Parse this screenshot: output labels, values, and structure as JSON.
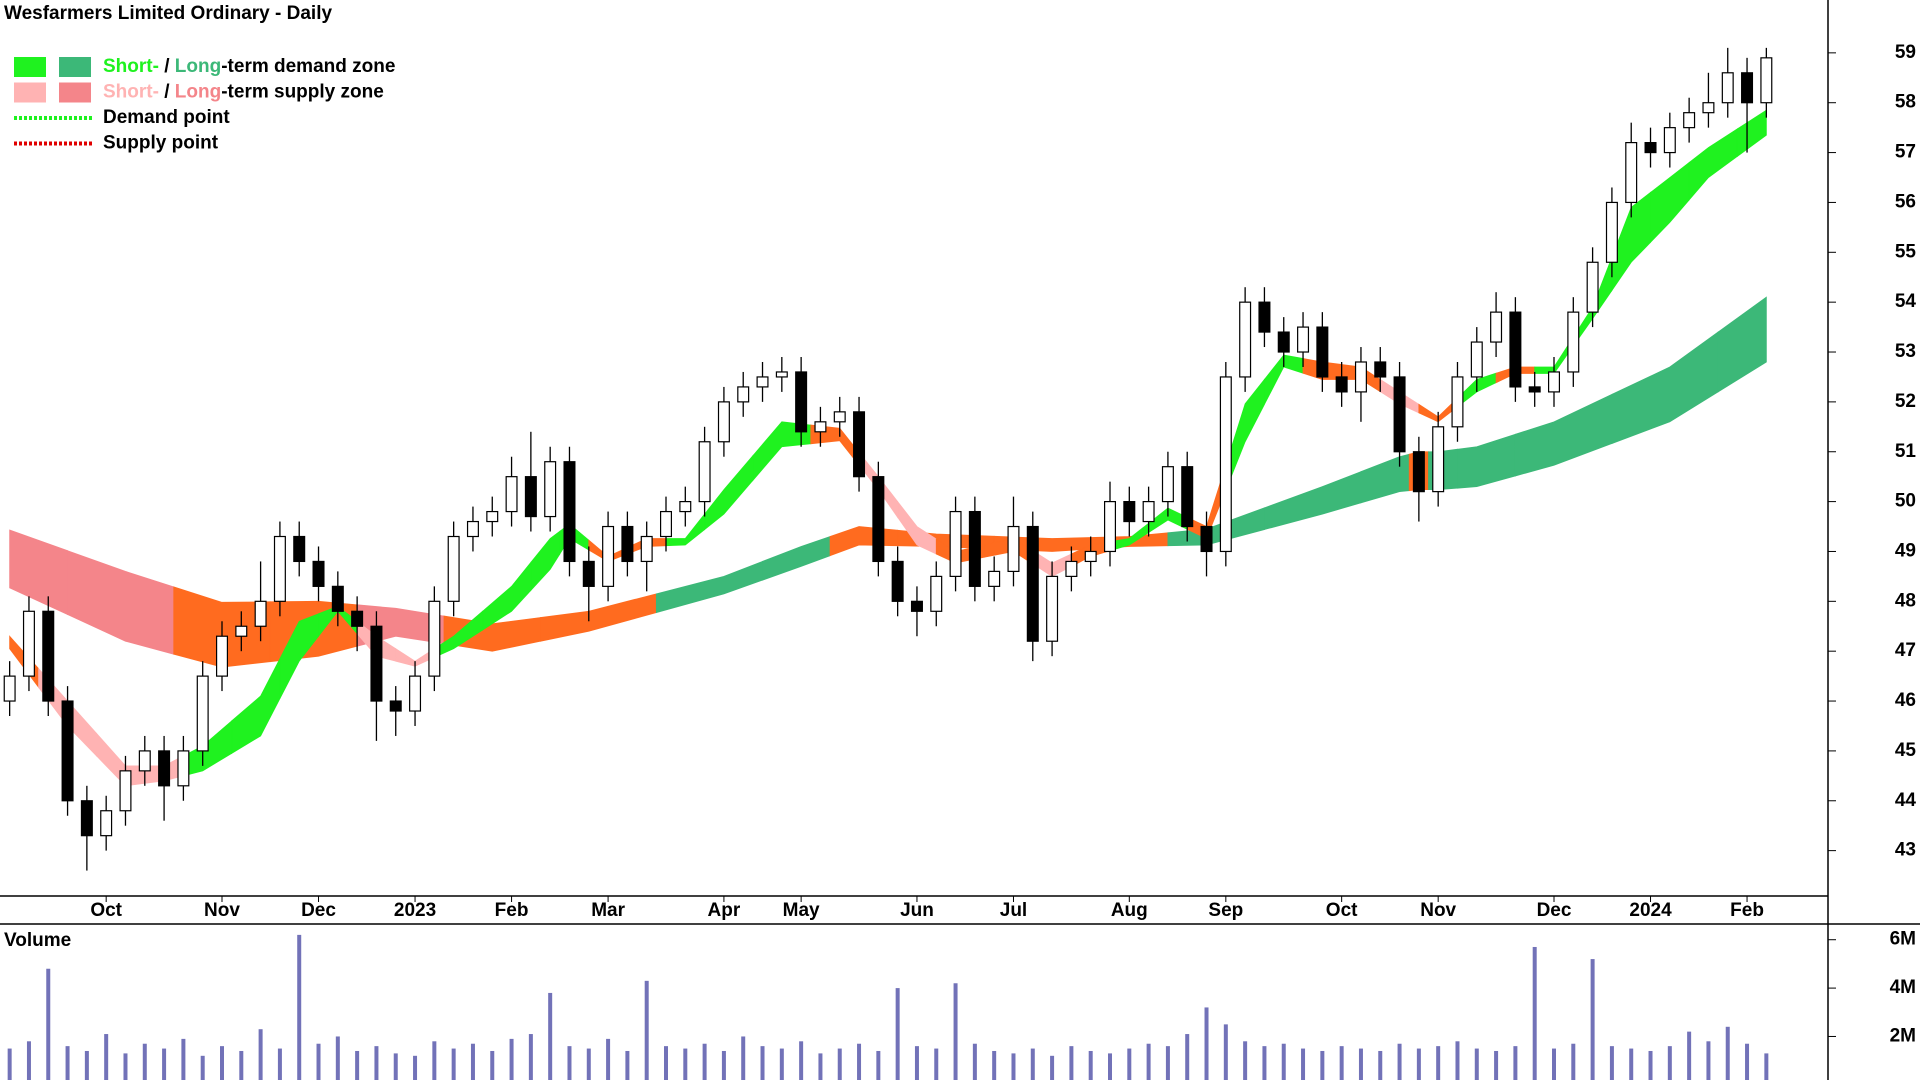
{
  "chart_data": [
    {
      "type": "candlestick",
      "title": "Wesfarmers Limited Ordinary - Daily",
      "open": [
        46.0,
        46.5,
        47.8,
        46.0,
        44.0,
        43.3,
        43.8,
        44.6,
        45.0,
        44.3,
        45.0,
        46.5,
        47.3,
        47.5,
        48.0,
        49.3,
        48.8,
        48.3,
        47.8,
        47.5,
        46.0,
        45.8,
        46.5,
        48.0,
        49.3,
        49.6,
        49.8,
        50.5,
        49.7,
        50.8,
        48.8,
        48.3,
        49.5,
        48.8,
        49.3,
        49.8,
        50.0,
        51.2,
        52.0,
        52.3,
        52.5,
        52.6,
        51.4,
        51.6,
        51.8,
        50.5,
        48.8,
        48.0,
        47.8,
        48.5,
        49.8,
        48.3,
        48.6,
        49.5,
        47.2,
        48.5,
        48.8,
        49.0,
        50.0,
        49.6,
        50.0,
        50.7,
        49.5,
        49.0,
        52.5,
        54.0,
        53.4,
        53.0,
        53.5,
        52.5,
        52.2,
        52.8,
        52.5,
        51.0,
        50.2,
        51.5,
        52.5,
        53.2,
        53.8,
        52.3,
        52.2,
        52.6,
        53.8,
        54.8,
        56.0,
        57.2,
        57.0,
        57.5,
        57.8,
        58.0,
        58.6,
        58.0
      ],
      "high": [
        46.8,
        48.1,
        48.1,
        46.3,
        44.3,
        44.1,
        44.9,
        45.3,
        45.3,
        45.3,
        46.8,
        47.6,
        47.8,
        48.8,
        49.6,
        49.6,
        49.1,
        48.6,
        48.1,
        47.8,
        46.3,
        46.8,
        48.3,
        49.6,
        49.9,
        50.1,
        50.9,
        51.4,
        51.1,
        51.1,
        49.1,
        49.8,
        49.8,
        49.6,
        50.1,
        50.3,
        51.5,
        52.3,
        52.6,
        52.8,
        52.9,
        52.9,
        51.9,
        52.1,
        52.1,
        50.8,
        49.1,
        48.3,
        48.8,
        50.1,
        50.1,
        48.9,
        50.1,
        49.8,
        48.8,
        49.1,
        49.3,
        50.4,
        50.3,
        50.3,
        51.0,
        51.0,
        49.8,
        52.8,
        54.3,
        54.3,
        53.7,
        53.8,
        53.8,
        52.8,
        53.1,
        53.1,
        52.8,
        51.3,
        51.8,
        52.8,
        53.5,
        54.2,
        54.1,
        52.6,
        52.9,
        54.1,
        55.1,
        56.3,
        57.6,
        57.5,
        57.8,
        58.1,
        58.6,
        59.1,
        58.9,
        59.1
      ],
      "low": [
        45.7,
        46.2,
        45.7,
        43.7,
        42.6,
        43.0,
        43.5,
        44.3,
        43.6,
        44.0,
        44.7,
        46.2,
        47.0,
        47.2,
        47.7,
        48.5,
        48.0,
        47.5,
        47.0,
        45.2,
        45.3,
        45.5,
        46.2,
        47.7,
        49.0,
        49.3,
        49.5,
        49.4,
        49.4,
        48.5,
        47.6,
        48.0,
        48.5,
        48.2,
        49.0,
        49.5,
        49.7,
        50.9,
        51.7,
        52.0,
        52.2,
        51.1,
        51.1,
        51.3,
        50.2,
        48.5,
        47.7,
        47.3,
        47.5,
        48.2,
        48.0,
        48.0,
        48.3,
        46.8,
        46.9,
        48.2,
        48.5,
        48.7,
        49.3,
        49.3,
        49.7,
        49.2,
        48.5,
        48.7,
        52.2,
        53.1,
        52.7,
        52.7,
        52.2,
        51.9,
        51.6,
        52.2,
        50.7,
        49.6,
        49.9,
        51.2,
        52.2,
        52.9,
        52.0,
        51.9,
        51.9,
        52.3,
        53.5,
        54.5,
        55.7,
        56.7,
        56.7,
        57.2,
        57.5,
        57.7,
        57.0,
        57.7
      ],
      "close": [
        46.5,
        47.8,
        46.0,
        44.0,
        43.3,
        43.8,
        44.6,
        45.0,
        44.3,
        45.0,
        46.5,
        47.3,
        47.5,
        48.0,
        49.3,
        48.8,
        48.3,
        47.8,
        47.5,
        46.0,
        45.8,
        46.5,
        48.0,
        49.3,
        49.6,
        49.8,
        50.5,
        49.7,
        50.8,
        48.8,
        48.3,
        49.5,
        48.8,
        49.3,
        49.8,
        50.0,
        51.2,
        52.0,
        52.3,
        52.5,
        52.6,
        51.4,
        51.6,
        51.8,
        50.5,
        48.8,
        48.0,
        47.8,
        48.5,
        49.8,
        48.3,
        48.6,
        49.5,
        47.2,
        48.5,
        48.8,
        49.0,
        50.0,
        49.6,
        50.0,
        50.7,
        49.5,
        49.0,
        52.5,
        54.0,
        53.4,
        53.0,
        53.5,
        52.5,
        52.2,
        52.8,
        52.5,
        51.0,
        50.2,
        51.5,
        52.5,
        53.2,
        53.8,
        52.3,
        52.2,
        52.6,
        53.8,
        54.8,
        56.0,
        57.2,
        57.0,
        57.5,
        57.8,
        58.0,
        58.6,
        58.0,
        58.9
      ],
      "up_color": "#ffffff",
      "down_color": "#000000",
      "ylim": [
        42.09,
        60.06
      ],
      "yticks": [
        43,
        44,
        45,
        46,
        47,
        48,
        49,
        50,
        51,
        52,
        53,
        54,
        55,
        56,
        57,
        58,
        59
      ],
      "xticks": [
        {
          "value": 5,
          "label": "Oct"
        },
        {
          "value": 11,
          "label": "Nov"
        },
        {
          "value": 16,
          "label": "Dec"
        },
        {
          "value": 21,
          "label": "2023"
        },
        {
          "value": 26,
          "label": "Feb"
        },
        {
          "value": 31,
          "label": "Mar"
        },
        {
          "value": 37,
          "label": "Apr"
        },
        {
          "value": 41,
          "label": "May"
        },
        {
          "value": 47,
          "label": "Jun"
        },
        {
          "value": 52,
          "label": "Jul"
        },
        {
          "value": 58,
          "label": "Aug"
        },
        {
          "value": 63,
          "label": "Sep"
        },
        {
          "value": 69,
          "label": "Oct"
        },
        {
          "value": 74,
          "label": "Nov"
        },
        {
          "value": 80,
          "label": "Dec"
        },
        {
          "value": 85,
          "label": "2024"
        },
        {
          "value": 90,
          "label": "Feb"
        }
      ],
      "zones": [
        {
          "x": [
            0,
            6,
            11,
            16,
            20,
            25,
            30,
            37,
            41,
            44,
            48,
            54,
            58,
            62,
            68,
            72,
            73,
            74,
            76,
            80,
            86,
            91
          ],
          "upper": [
            49.43,
            48.6,
            47.98,
            48.0,
            47.86,
            47.55,
            47.8,
            48.5,
            49.1,
            49.5,
            49.35,
            49.26,
            49.3,
            49.45,
            50.3,
            50.9,
            51.0,
            51.0,
            51.1,
            51.6,
            52.7,
            54.1
          ],
          "lower": [
            48.27,
            47.2,
            46.68,
            46.9,
            47.3,
            47.0,
            47.4,
            48.15,
            48.7,
            49.13,
            49.1,
            49.0,
            49.1,
            49.13,
            49.75,
            50.2,
            50.24,
            50.24,
            50.3,
            50.73,
            51.6,
            52.8
          ],
          "colors": [
            "#f4858a",
            "#f4858a",
            "#ff6b1f",
            "#ff6b1f",
            "#f4858a",
            "#ff6b1f",
            "#ff6b1f",
            "#3cb878",
            "#3cb878",
            "#ff6b1f",
            "#ff6b1f",
            "#ff6b1f",
            "#ff6b1f",
            "#3cb878",
            "#3cb878",
            "#3cb878",
            "#ff6b1f",
            "#3cb878",
            "#3cb878",
            "#3cb878",
            "#3cb878",
            "#3cb878"
          ]
        },
        {
          "x": [
            0,
            3,
            6,
            8,
            10,
            13,
            15,
            17,
            19,
            21,
            23,
            26,
            28,
            29,
            31,
            33,
            35,
            37,
            40,
            43,
            45,
            47,
            49,
            52,
            54,
            56,
            58,
            60,
            62,
            64,
            66,
            68,
            70,
            72,
            74,
            76,
            78,
            80,
            82,
            84,
            86,
            88,
            91
          ],
          "upper": [
            47.3,
            46.0,
            44.7,
            44.7,
            45.1,
            46.1,
            47.6,
            47.9,
            47.3,
            46.8,
            47.3,
            48.3,
            49.26,
            49.55,
            48.9,
            49.26,
            49.26,
            50.24,
            51.6,
            51.47,
            50.5,
            49.5,
            49.0,
            49.26,
            48.77,
            49.13,
            49.26,
            49.87,
            49.5,
            51.96,
            52.94,
            52.8,
            52.7,
            52.2,
            51.7,
            52.45,
            52.7,
            52.7,
            53.9,
            55.9,
            56.5,
            57.1,
            57.85
          ],
          "lower": [
            47.05,
            45.5,
            44.3,
            44.4,
            44.6,
            45.3,
            46.8,
            47.8,
            46.9,
            46.7,
            47.05,
            47.8,
            48.64,
            49.26,
            48.8,
            49.1,
            49.13,
            49.75,
            51.1,
            51.22,
            50.24,
            49.13,
            48.77,
            49.0,
            48.5,
            48.9,
            49.13,
            49.63,
            49.26,
            51.2,
            52.7,
            52.45,
            52.45,
            51.96,
            51.6,
            52.2,
            52.57,
            52.57,
            53.67,
            54.8,
            55.6,
            56.5,
            57.35
          ],
          "colors": [
            "#ff6b1f",
            "#ffb3b3",
            "#ffb3b3",
            "#ffb3b3",
            "#1ff21f",
            "#1ff21f",
            "#1ff21f",
            "#1ff21f",
            "#ffb3b3",
            "#ffb3b3",
            "#1ff21f",
            "#1ff21f",
            "#1ff21f",
            "#1ff21f",
            "#ff6b1f",
            "#ff6b1f",
            "#1ff21f",
            "#1ff21f",
            "#1ff21f",
            "#ff6b1f",
            "#ffb3b3",
            "#ffb3b3",
            "#ff6b1f",
            "#ff6b1f",
            "#ffb3b3",
            "#ff6b1f",
            "#1ff21f",
            "#1ff21f",
            "#ff6b1f",
            "#1ff21f",
            "#1ff21f",
            "#ff6b1f",
            "#ff6b1f",
            "#ffb3b3",
            "#ff6b1f",
            "#1ff21f",
            "#ff6b1f",
            "#1ff21f",
            "#1ff21f",
            "#1ff21f",
            "#1ff21f",
            "#1ff21f",
            "#1ff21f"
          ]
        }
      ],
      "legend": [
        {
          "swatches": [
            "#1ff21f",
            "#3cb878"
          ],
          "parts": [
            {
              "text": "Short-",
              "color": "#1ff21f"
            },
            {
              "text": " / ",
              "color": "#000000"
            },
            {
              "text": "Long",
              "color": "#3cb878"
            },
            {
              "text": "-term demand zone",
              "color": "#000000"
            }
          ]
        },
        {
          "swatches": [
            "#ffb3b3",
            "#f4858a"
          ],
          "parts": [
            {
              "text": "Short-",
              "color": "#ffb3b3"
            },
            {
              "text": " / ",
              "color": "#000000"
            },
            {
              "text": "Long",
              "color": "#f4858a"
            },
            {
              "text": "-term supply zone",
              "color": "#000000"
            }
          ]
        },
        {
          "line": "#1ff21f",
          "parts": [
            {
              "text": "Demand point",
              "color": "#000000"
            }
          ]
        },
        {
          "line": "#e00000",
          "parts": [
            {
              "text": "Supply point",
              "color": "#000000"
            }
          ]
        }
      ]
    },
    {
      "type": "bar",
      "title": "Volume",
      "title_color": "#5b1e8c",
      "color": "#7272b8",
      "values": [
        1500000,
        1800000,
        4800000,
        1600000,
        1400000,
        2100000,
        1300000,
        1700000,
        1500000,
        1900000,
        1200000,
        1600000,
        1400000,
        2300000,
        1500000,
        6200000,
        1700000,
        2000000,
        1400000,
        1600000,
        1300000,
        1200000,
        1800000,
        1500000,
        1700000,
        1400000,
        1900000,
        2100000,
        3800000,
        1600000,
        1500000,
        1900000,
        1400000,
        4300000,
        1600000,
        1500000,
        1700000,
        1400000,
        2000000,
        1600000,
        1500000,
        1800000,
        1300000,
        1500000,
        1700000,
        1400000,
        4000000,
        1600000,
        1500000,
        4200000,
        1700000,
        1400000,
        1300000,
        1500000,
        1200000,
        1600000,
        1400000,
        1300000,
        1500000,
        1700000,
        1600000,
        2100000,
        3200000,
        2500000,
        1800000,
        1600000,
        1700000,
        1500000,
        1400000,
        1600000,
        1500000,
        1400000,
        1700000,
        1500000,
        1600000,
        1800000,
        1500000,
        1400000,
        1600000,
        5700000,
        1500000,
        1700000,
        5200000,
        1600000,
        1500000,
        1400000,
        1600000,
        2200000,
        1800000,
        2400000,
        1700000,
        1300000
      ],
      "ylim": [
        200000,
        6650000
      ],
      "yticks": [
        {
          "value": 2000000,
          "label": "2M"
        },
        {
          "value": 4000000,
          "label": "4M"
        },
        {
          "value": 6000000,
          "label": "6M"
        }
      ]
    }
  ]
}
